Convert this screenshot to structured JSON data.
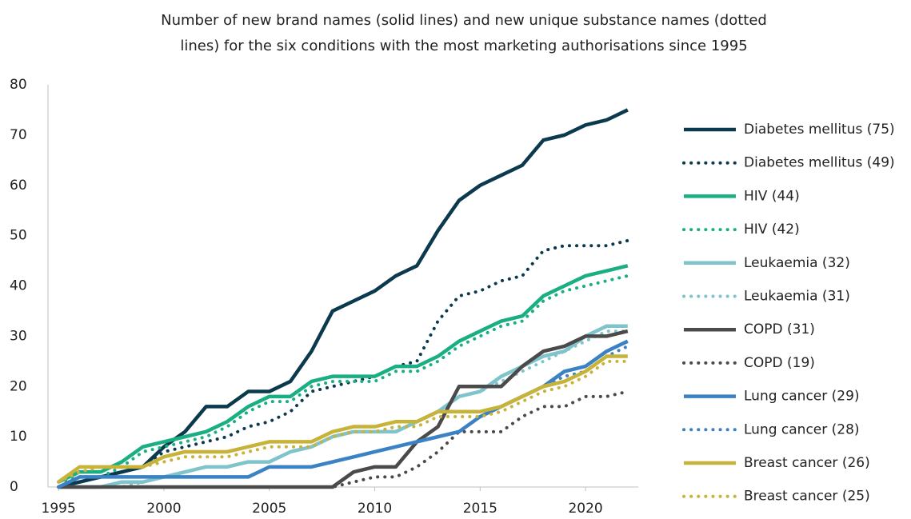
{
  "chart_data": {
    "type": "line",
    "title": [
      "Number of new brand names (solid lines) and new unique substance names (dotted",
      "lines) for the six conditions with the most marketing authorisations since 1995"
    ],
    "x": [
      1995,
      1996,
      1997,
      1998,
      1999,
      2000,
      2001,
      2002,
      2003,
      2004,
      2005,
      2006,
      2007,
      2008,
      2009,
      2010,
      2011,
      2012,
      2013,
      2014,
      2015,
      2016,
      2017,
      2018,
      2019,
      2020,
      2021,
      2022
    ],
    "xlim": [
      1994.5,
      2022.5
    ],
    "xticks": [
      1995,
      2000,
      2005,
      2010,
      2015,
      2020
    ],
    "ylim": [
      0,
      80
    ],
    "yticks": [
      0,
      10,
      20,
      30,
      40,
      50,
      60,
      70,
      80
    ],
    "grid": false,
    "legend": "right",
    "series": [
      {
        "name": "Diabetes mellitus (75)",
        "color": "#0b3a4f",
        "style": "solid",
        "values": [
          0,
          1,
          2,
          3,
          4,
          8,
          11,
          16,
          16,
          19,
          19,
          21,
          27,
          35,
          37,
          39,
          42,
          44,
          51,
          57,
          60,
          62,
          64,
          69,
          70,
          72,
          73,
          75
        ]
      },
      {
        "name": "Diabetes mellitus (49)",
        "color": "#0b3a4f",
        "style": "dotted",
        "values": [
          0,
          1,
          2,
          3,
          4,
          7,
          8,
          9,
          10,
          12,
          13,
          15,
          19,
          20,
          21,
          22,
          24,
          25,
          33,
          38,
          39,
          41,
          42,
          47,
          48,
          48,
          48,
          49
        ]
      },
      {
        "name": "HIV (44)",
        "color": "#1aaf82",
        "style": "solid",
        "values": [
          1,
          3,
          3,
          5,
          8,
          9,
          10,
          11,
          13,
          16,
          18,
          18,
          21,
          22,
          22,
          22,
          24,
          24,
          26,
          29,
          31,
          33,
          34,
          38,
          40,
          42,
          43,
          44
        ]
      },
      {
        "name": "HIV (42)",
        "color": "#1aaf82",
        "style": "dotted",
        "values": [
          1,
          2,
          2,
          4,
          7,
          8,
          9,
          10,
          12,
          15,
          17,
          17,
          20,
          21,
          21,
          21,
          23,
          23,
          25,
          28,
          30,
          32,
          33,
          37,
          39,
          40,
          41,
          42
        ]
      },
      {
        "name": "Leukaemia (32)",
        "color": "#7fc3cb",
        "style": "solid",
        "values": [
          0,
          0,
          0,
          1,
          1,
          2,
          3,
          4,
          4,
          5,
          5,
          7,
          8,
          10,
          11,
          11,
          11,
          13,
          15,
          18,
          19,
          22,
          24,
          26,
          27,
          30,
          32,
          32
        ]
      },
      {
        "name": "Leukaemia (31)",
        "color": "#7fc3cb",
        "style": "dotted",
        "values": [
          0,
          0,
          0,
          0,
          1,
          2,
          3,
          4,
          4,
          5,
          5,
          7,
          8,
          10,
          11,
          11,
          11,
          13,
          15,
          18,
          19,
          21,
          23,
          25,
          27,
          29,
          31,
          31
        ]
      },
      {
        "name": "COPD (31)",
        "color": "#4a4a4a",
        "style": "solid",
        "values": [
          0,
          0,
          0,
          0,
          0,
          0,
          0,
          0,
          0,
          0,
          0,
          0,
          0,
          0,
          3,
          4,
          4,
          9,
          12,
          20,
          20,
          20,
          24,
          27,
          28,
          30,
          30,
          31
        ]
      },
      {
        "name": "COPD (19)",
        "color": "#4a4a4a",
        "style": "dotted",
        "values": [
          0,
          0,
          0,
          0,
          0,
          0,
          0,
          0,
          0,
          0,
          0,
          0,
          0,
          0,
          1,
          2,
          2,
          4,
          7,
          11,
          11,
          11,
          14,
          16,
          16,
          18,
          18,
          19
        ]
      },
      {
        "name": "Lung cancer (29)",
        "color": "#3a82c4",
        "style": "solid",
        "values": [
          0,
          2,
          2,
          2,
          2,
          2,
          2,
          2,
          2,
          2,
          4,
          4,
          4,
          5,
          6,
          7,
          8,
          9,
          10,
          11,
          14,
          16,
          18,
          20,
          23,
          24,
          27,
          29
        ]
      },
      {
        "name": "Lung cancer (28)",
        "color": "#3a82c4",
        "style": "dotted",
        "values": [
          0,
          2,
          2,
          2,
          2,
          2,
          2,
          2,
          2,
          2,
          4,
          4,
          4,
          5,
          6,
          7,
          8,
          9,
          10,
          11,
          14,
          16,
          18,
          20,
          22,
          23,
          26,
          28
        ]
      },
      {
        "name": "Breast cancer (26)",
        "color": "#c8b33a",
        "style": "solid",
        "values": [
          1,
          4,
          4,
          4,
          4,
          6,
          7,
          7,
          7,
          8,
          9,
          9,
          9,
          11,
          12,
          12,
          13,
          13,
          15,
          15,
          15,
          16,
          18,
          20,
          21,
          23,
          26,
          26
        ]
      },
      {
        "name": "Breast cancer (25)",
        "color": "#c8b33a",
        "style": "dotted",
        "values": [
          1,
          3,
          4,
          4,
          4,
          5,
          6,
          6,
          6,
          7,
          8,
          8,
          8,
          10,
          11,
          11,
          12,
          12,
          14,
          14,
          14,
          15,
          17,
          19,
          20,
          22,
          25,
          25
        ]
      }
    ]
  }
}
